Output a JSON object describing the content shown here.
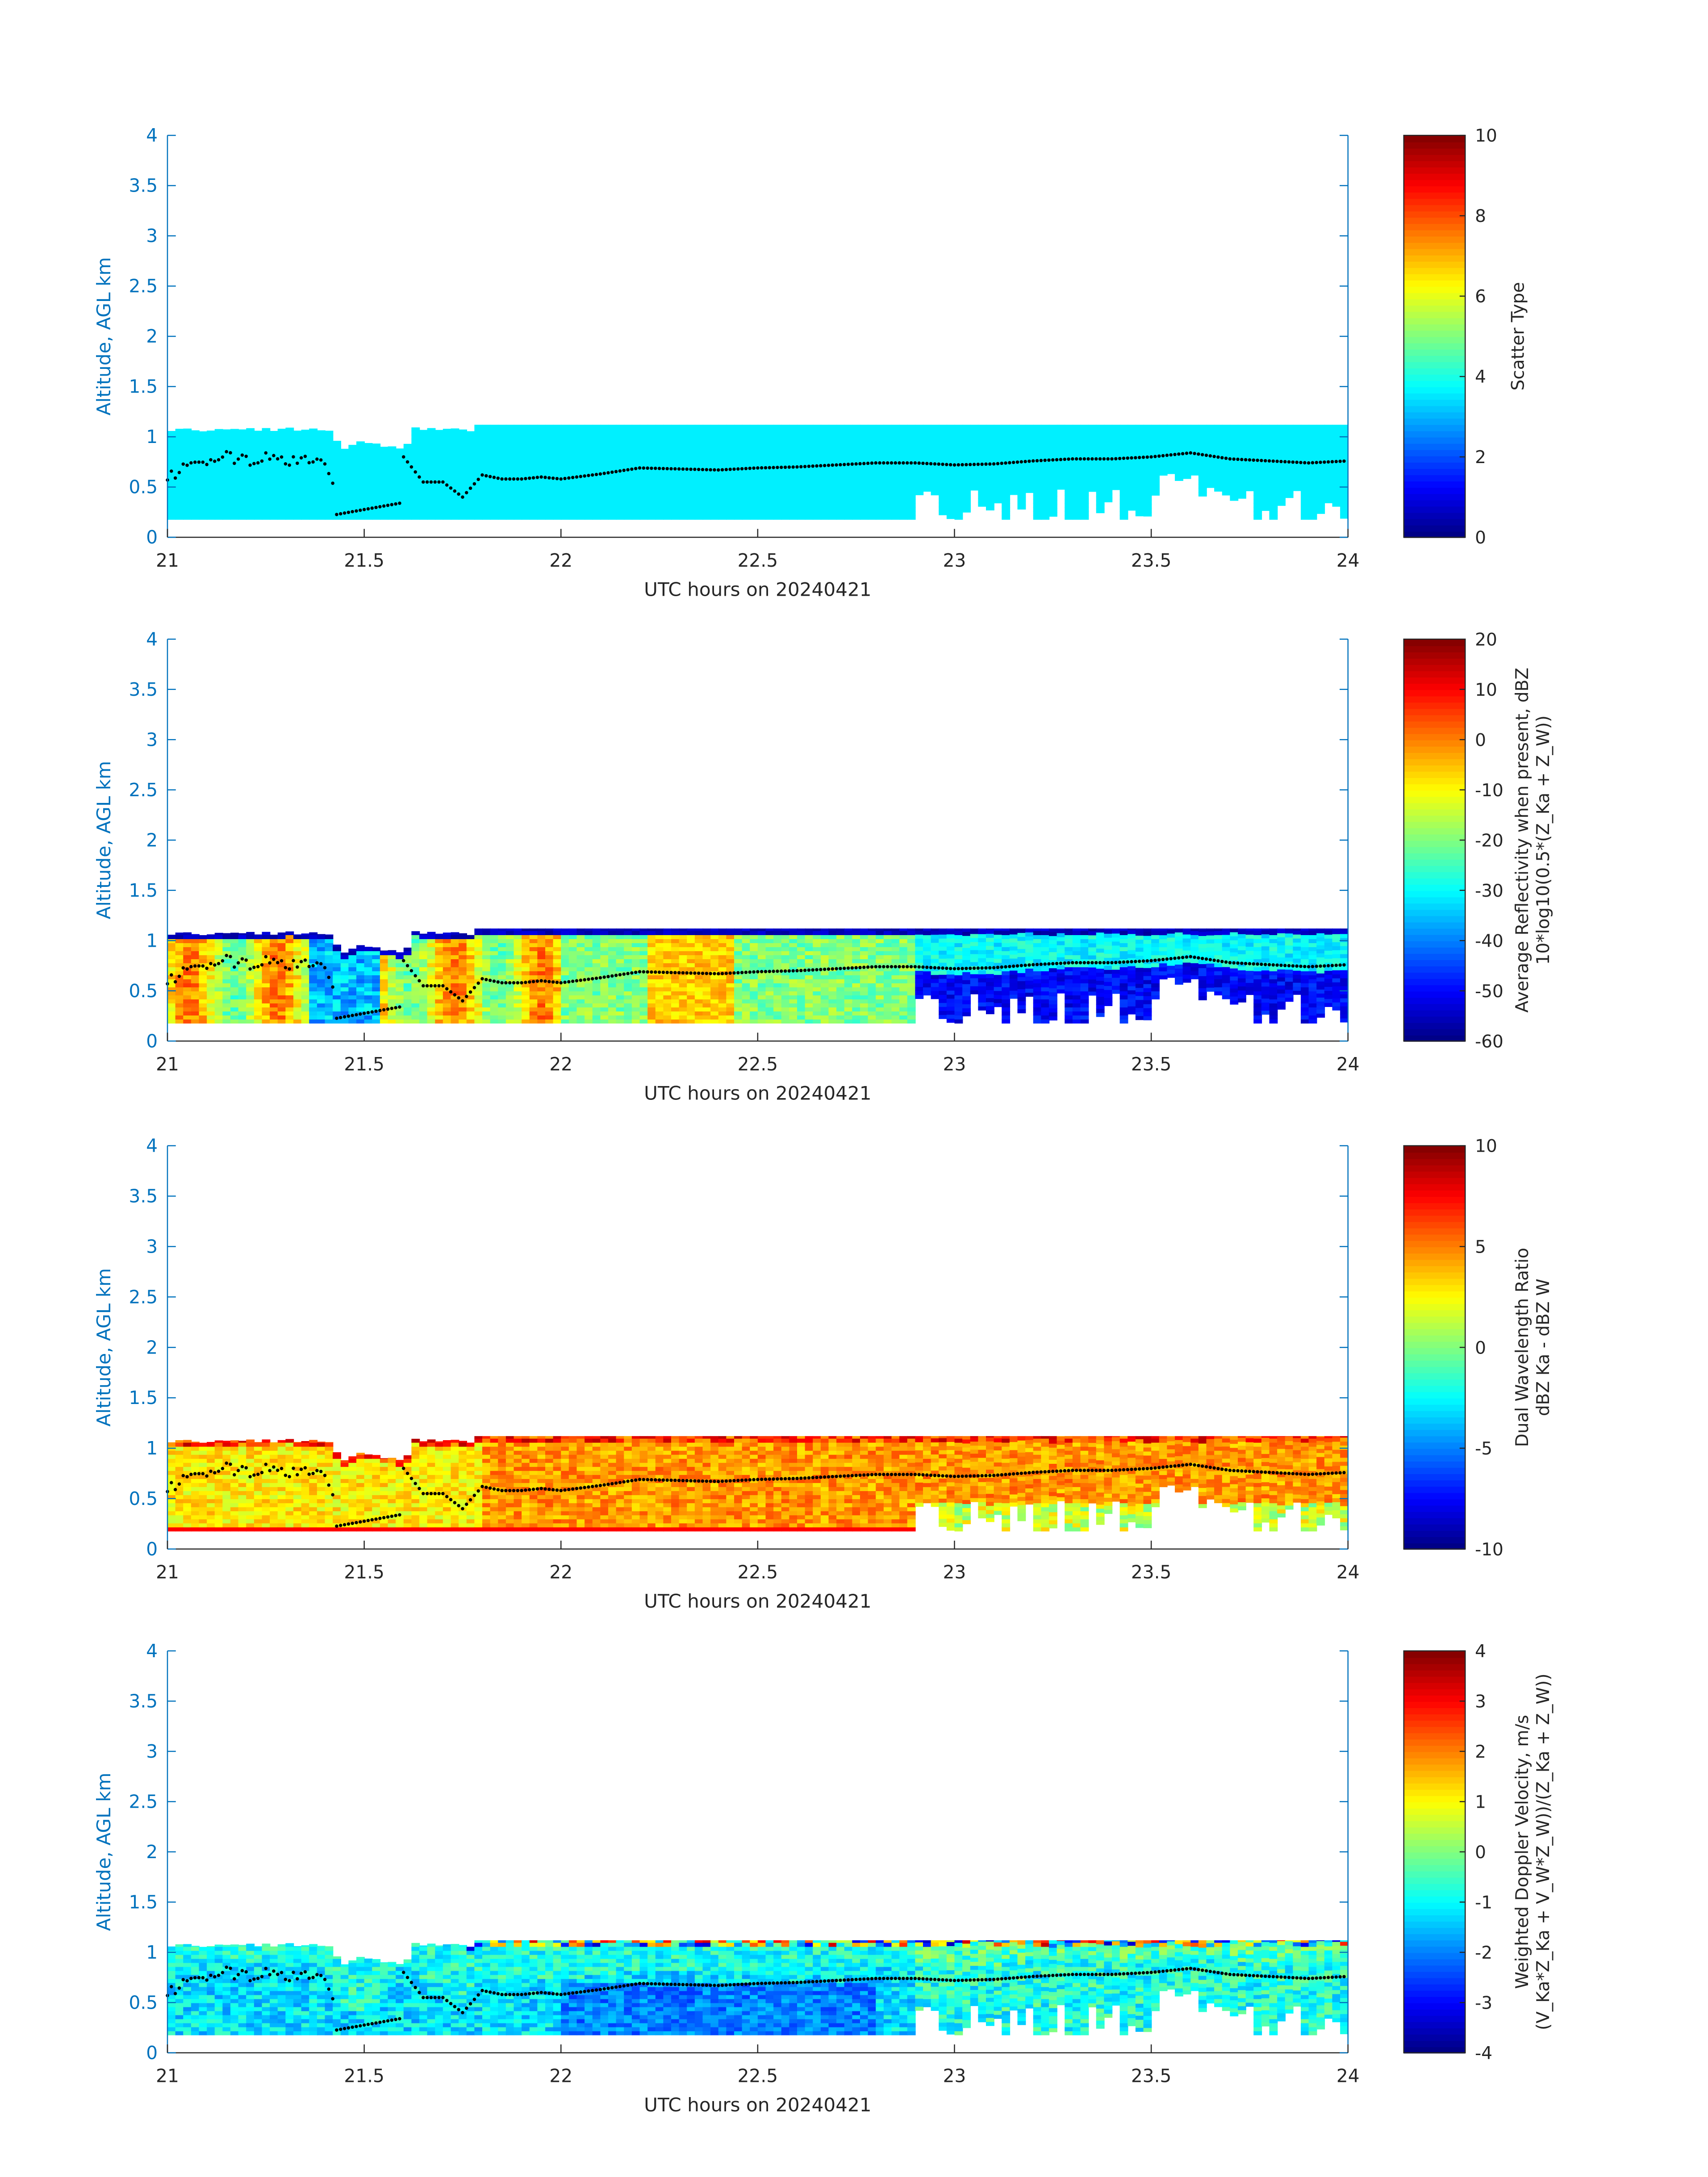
{
  "figure": {
    "background": "#ffffff",
    "axis_color": "#0072bd",
    "text_color": "#262626",
    "boundary_color": "#000000",
    "colormap": "jet"
  },
  "chart_data": [
    {
      "type": "heatmap",
      "title": "",
      "xlabel": "UTC hours on 20240421",
      "ylabel": "Altitude, AGL km",
      "xlim": [
        21,
        24
      ],
      "ylim": [
        0,
        4
      ],
      "xticks": [
        "21",
        "21.5",
        "22",
        "22.5",
        "23",
        "23.5",
        "24"
      ],
      "yticks": [
        "0",
        "0.5",
        "1",
        "1.5",
        "2",
        "2.5",
        "3",
        "3.5",
        "4"
      ],
      "colorbar_label": [
        "Scatter Type"
      ],
      "clim": [
        0,
        10
      ],
      "cticks": [
        "0",
        "2",
        "4",
        "6",
        "8",
        "10"
      ],
      "field": "scatter_type",
      "grid": false
    },
    {
      "type": "heatmap",
      "title": "",
      "xlabel": "UTC hours on 20240421",
      "ylabel": "Altitude, AGL km",
      "xlim": [
        21,
        24
      ],
      "ylim": [
        0,
        4
      ],
      "xticks": [
        "21",
        "21.5",
        "22",
        "22.5",
        "23",
        "23.5",
        "24"
      ],
      "yticks": [
        "0",
        "0.5",
        "1",
        "1.5",
        "2",
        "2.5",
        "3",
        "3.5",
        "4"
      ],
      "colorbar_label": [
        "Average Reflectivity when present, dBZ",
        "10*log10(0.5*(Z_Ka + Z_W))"
      ],
      "clim": [
        -60,
        20
      ],
      "cticks": [
        "-60",
        "-50",
        "-40",
        "-30",
        "-20",
        "-10",
        "0",
        "10",
        "20"
      ],
      "field": "reflectivity",
      "grid": false
    },
    {
      "type": "heatmap",
      "title": "",
      "xlabel": "UTC hours on 20240421",
      "ylabel": "Altitude, AGL km",
      "xlim": [
        21,
        24
      ],
      "ylim": [
        0,
        4
      ],
      "xticks": [
        "21",
        "21.5",
        "22",
        "22.5",
        "23",
        "23.5",
        "24"
      ],
      "yticks": [
        "0",
        "0.5",
        "1",
        "1.5",
        "2",
        "2.5",
        "3",
        "3.5",
        "4"
      ],
      "colorbar_label": [
        "Dual Wavelength Ratio",
        "dBZ Ka - dBZ W"
      ],
      "clim": [
        -10,
        10
      ],
      "cticks": [
        "-10",
        "-5",
        "0",
        "5",
        "10"
      ],
      "field": "dwr",
      "grid": false
    },
    {
      "type": "heatmap",
      "title": "",
      "xlabel": "UTC hours on 20240421",
      "ylabel": "Altitude, AGL km",
      "xlim": [
        21,
        24
      ],
      "ylim": [
        0,
        4
      ],
      "xticks": [
        "21",
        "21.5",
        "22",
        "22.5",
        "23",
        "23.5",
        "24"
      ],
      "yticks": [
        "0",
        "0.5",
        "1",
        "1.5",
        "2",
        "2.5",
        "3",
        "3.5",
        "4"
      ],
      "colorbar_label": [
        "Weighted Doppler Velocity, m/s",
        "(V_Ka*Z_Ka + V_W*Z_W))/(Z_Ka + Z_W))"
      ],
      "clim": [
        -4,
        4
      ],
      "cticks": [
        "-4",
        "-3",
        "-2",
        "-1",
        "0",
        "1",
        "2",
        "3",
        "4"
      ],
      "field": "velocity",
      "grid": false
    }
  ],
  "boundary_dots": {
    "hours": [
      21.0,
      21.05,
      21.1,
      21.15,
      21.2,
      21.25,
      21.3,
      21.35,
      21.4,
      21.45,
      21.5,
      21.55,
      21.6,
      21.65,
      21.7,
      21.75,
      21.8,
      21.85,
      21.9,
      21.95,
      22.0,
      22.1,
      22.2,
      22.3,
      22.4,
      22.5,
      22.6,
      22.7,
      22.8,
      22.9,
      23.0,
      23.1,
      23.2,
      23.3,
      23.4,
      23.5,
      23.6,
      23.7,
      23.8,
      23.9,
      24.0
    ],
    "altitude_km": [
      0.57,
      0.72,
      0.77,
      0.8,
      0.75,
      0.78,
      0.74,
      0.8,
      0.73,
      0.25,
      0.3,
      0.38,
      0.8,
      0.55,
      0.55,
      0.4,
      0.62,
      0.58,
      0.58,
      0.6,
      0.58,
      0.63,
      0.69,
      0.68,
      0.67,
      0.69,
      0.7,
      0.72,
      0.74,
      0.74,
      0.72,
      0.73,
      0.76,
      0.78,
      0.78,
      0.8,
      0.84,
      0.78,
      0.76,
      0.74,
      0.76
    ]
  }
}
